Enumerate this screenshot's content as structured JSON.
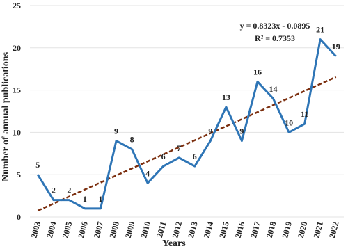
{
  "chart_data": {
    "type": "line",
    "x_label": "Years",
    "y_label": "Number of annual publications",
    "categories": [
      "2003",
      "2004",
      "2005",
      "2006",
      "2007",
      "2008",
      "2009",
      "2010",
      "2011",
      "2012",
      "2013",
      "2014",
      "2015",
      "2016",
      "2017",
      "2018",
      "2019",
      "2020",
      "2021",
      "2022"
    ],
    "series": [
      {
        "color": "#2E75B6",
        "values": [
          5,
          2,
          2,
          1,
          1,
          9,
          8,
          4,
          6,
          7,
          6,
          9,
          13,
          9,
          16,
          14,
          10,
          11,
          21,
          19
        ]
      }
    ],
    "trendline": {
      "slope": 0.8323,
      "intercept": -0.0895,
      "color": "#7B2E0E",
      "label": "y = 0.8323x - 0.0895",
      "r_squared_label": "R² = 0.7353"
    },
    "ylim": [
      0,
      25
    ],
    "yticks": [
      0,
      5,
      10,
      15,
      20,
      25
    ],
    "grid": true
  }
}
